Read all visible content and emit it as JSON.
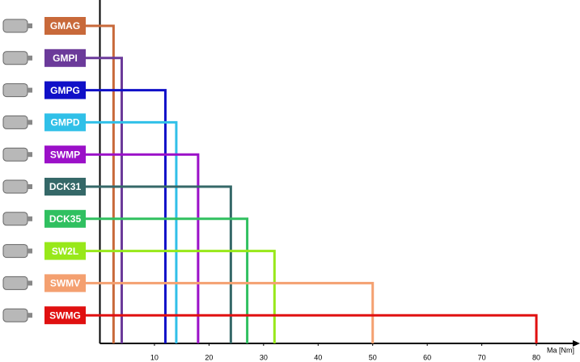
{
  "chart_data": {
    "type": "bar",
    "categories": [
      "GMAG",
      "GMPI",
      "GMPG",
      "GMPD",
      "SWMP",
      "DCK31",
      "DCK35",
      "SW2L",
      "SWMV",
      "SWMG"
    ],
    "values": [
      2.5,
      4,
      12,
      14,
      18,
      24,
      27,
      32,
      50,
      80
    ],
    "colors": [
      "#c8693a",
      "#6b3a9a",
      "#1010c8",
      "#30c0e8",
      "#9b10c8",
      "#356868",
      "#30c060",
      "#98e81a",
      "#f4a070",
      "#e01010"
    ],
    "xlim": [
      0,
      88
    ],
    "xticks": [
      10,
      20,
      30,
      40,
      50,
      60,
      70,
      80
    ],
    "x_label": "Ma [Nm]"
  }
}
